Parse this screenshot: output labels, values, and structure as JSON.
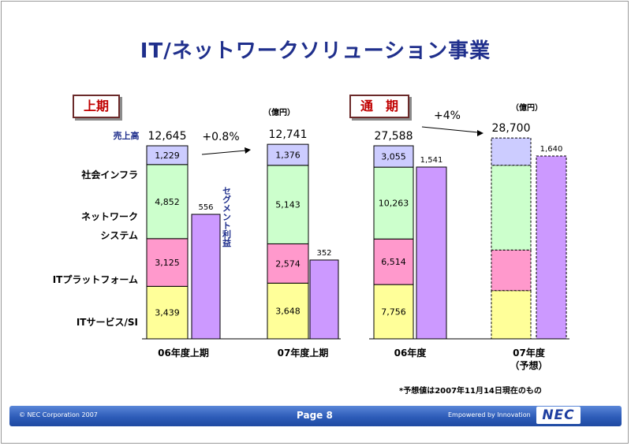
{
  "title": "IT/ネットワークソリューション事業",
  "left_panel_label": "上期",
  "right_panel_label": "通　期",
  "unit_left": "（億円）",
  "unit_right": "（億円）",
  "sales_label": "売上高",
  "segment_profit_label": "セグメント利益",
  "growth_left": "+0.8%",
  "growth_right": "+4%",
  "note": "*予想値は2007年11月14日現在のもの",
  "footer": {
    "copyright": "© NEC Corporation 2007",
    "page": "Page 8",
    "tagline": "Empowered by Innovation",
    "logo": "NEC"
  },
  "colors": {
    "social_infra": "#ccccff",
    "network_system": "#ccffcc",
    "it_platform": "#ff99cc",
    "it_services": "#ffff99",
    "segment_profit": "#cc99ff",
    "border": "#000000",
    "title": "#1f2f8c"
  },
  "chart_data": {
    "type": "bar",
    "stacked": true,
    "segments": [
      "ITサービス/SI",
      "ITプラットフォーム",
      "ネットワーク\nシステム",
      "社会インフラ"
    ],
    "segment_labels": [
      "ITサービス/SI",
      "ITプラットフォーム",
      "ネットワーク",
      "システム",
      "社会インフラ"
    ],
    "groups": [
      {
        "category": "06年度上期",
        "subcategory": "",
        "total": "12,645",
        "values": [
          3439,
          3125,
          4852,
          1229
        ],
        "value_labels": [
          "3,439",
          "3,125",
          "4,852",
          "1,229"
        ],
        "segment_profit": 556,
        "profit_label": "556",
        "forecast": false
      },
      {
        "category": "07年度上期",
        "subcategory": "",
        "total": "12,741",
        "values": [
          3648,
          2574,
          5143,
          1376
        ],
        "value_labels": [
          "3,648",
          "2,574",
          "5,143",
          "1,376"
        ],
        "segment_profit": 352,
        "profit_label": "352",
        "forecast": false
      },
      {
        "category": "06年度",
        "subcategory": "",
        "total": "27,588",
        "values": [
          7756,
          6514,
          10263,
          3055
        ],
        "value_labels": [
          "7,756",
          "6,514",
          "10,263",
          "3,055"
        ],
        "segment_profit": 1541,
        "profit_label": "1,541",
        "forecast": false
      },
      {
        "category": "07年度",
        "subcategory": "（予想）",
        "total": "28,700",
        "values": [
          6900,
          5800,
          12100,
          3900
        ],
        "value_labels": [
          "",
          "",
          "",
          ""
        ],
        "segment_profit": 1640,
        "profit_label": "1,640",
        "forecast": true
      }
    ]
  }
}
